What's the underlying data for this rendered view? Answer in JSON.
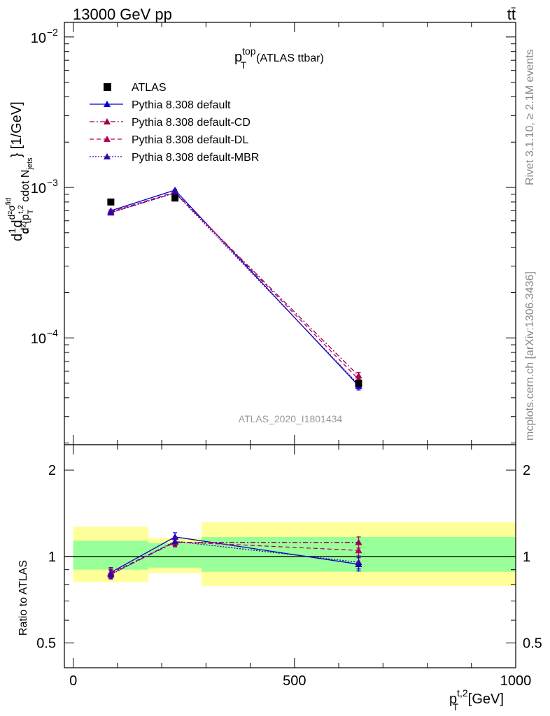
{
  "header": {
    "left": "13000 GeV pp",
    "right": "tt̄"
  },
  "side_labels": {
    "rivet": "Rivet 3.1.10, ≥ 2.1M events",
    "mcplots": "mcplots.cern.ch [arXiv:1306.3436]"
  },
  "watermark": "ATLAS_2020_I1801434",
  "colors": {
    "data": "#000000",
    "default": "#0000cc",
    "cd": "#99004d",
    "dl": "#b3005a",
    "mbr": "#3300aa",
    "band_inner": "#99ff99",
    "band_outer": "#ffff99"
  },
  "chart_data": [
    {
      "type": "line",
      "title_main": "p",
      "title_sup": "top",
      "title_sub": "T",
      "title_rest": "(ATLAS ttbar)",
      "ylabel": "d1dσdd²σ^{fid}d²{p_T^{t,2} cdot N_jets} [1/GeV]",
      "ylabel_parts": {
        "a": "d",
        "b": "1",
        "c": "d",
        "d": "σ",
        "e": "d",
        "f": "d²σ",
        "g": "fid",
        "h": "d²{p",
        "i": "T",
        "j": "t,2",
        "k": " cdot N",
        "l": "jets",
        "m": "} [1/GeV]"
      },
      "yscale": "log",
      "ylim": [
        1.95e-05,
        0.0125
      ],
      "xlim": [
        -20,
        1000
      ],
      "yticks": [
        {
          "value": 0.01,
          "base": "10",
          "exp": "−2"
        },
        {
          "value": 0.001,
          "base": "10",
          "exp": "−3"
        },
        {
          "value": 0.0001,
          "base": "10",
          "exp": "−4"
        }
      ],
      "legend_position": "top-left",
      "series": [
        {
          "name": "ATLAS",
          "key": "data",
          "x": [
            85,
            230,
            645
          ],
          "y": [
            0.0008,
            0.00085,
            5e-05
          ],
          "yerr": [
            1e-05,
            1e-05,
            1.5e-06
          ],
          "marker": "square",
          "line": "none"
        },
        {
          "name": "Pythia 8.308 default",
          "key": "default",
          "x": [
            85,
            230,
            645
          ],
          "y": [
            0.0007,
            0.00096,
            4.8e-05
          ],
          "yerr": [
            1e-05,
            1e-05,
            3e-06
          ],
          "marker": "triangle",
          "line": "solid"
        },
        {
          "name": "Pythia 8.308 default-CD",
          "key": "cd",
          "x": [
            85,
            230,
            645
          ],
          "y": [
            0.00068,
            0.00092,
            5.6e-05
          ],
          "yerr": [
            1e-05,
            1e-05,
            3e-06
          ],
          "marker": "triangle",
          "line": "dashdot"
        },
        {
          "name": "Pythia 8.308 default-DL",
          "key": "dl",
          "x": [
            85,
            230,
            645
          ],
          "y": [
            0.00069,
            0.00093,
            5.3e-05
          ],
          "yerr": [
            1e-05,
            1e-05,
            3e-06
          ],
          "marker": "triangle",
          "line": "dashed"
        },
        {
          "name": "Pythia 8.308 default-MBR",
          "key": "mbr",
          "x": [
            85,
            230,
            645
          ],
          "y": [
            0.00068,
            0.00092,
            4.9e-05
          ],
          "yerr": [
            1e-05,
            1e-05,
            3e-06
          ],
          "marker": "triangle",
          "line": "dotted"
        }
      ]
    },
    {
      "type": "line",
      "ylabel": "Ratio to ATLAS",
      "xlabel_main": "p",
      "xlabel_sup": "t,2",
      "xlabel_sub": "T",
      "xlabel_rest": " [GeV]",
      "yscale": "log",
      "ylim": [
        0.41,
        2.45
      ],
      "xlim": [
        -20,
        1000
      ],
      "yticks": [
        {
          "value": 0.5,
          "label": "0.5"
        },
        {
          "value": 1,
          "label": "1"
        },
        {
          "value": 2,
          "label": "2"
        }
      ],
      "xticks": [
        {
          "value": 0,
          "label": "0"
        },
        {
          "value": 500,
          "label": "500"
        },
        {
          "value": 1000,
          "label": "1000"
        }
      ],
      "bands": [
        {
          "x": [
            0,
            170
          ],
          "inner": [
            0.9,
            1.135
          ],
          "outer": [
            0.815,
            1.27
          ]
        },
        {
          "x": [
            170,
            290
          ],
          "inner": [
            0.915,
            1.115
          ],
          "outer": [
            0.875,
            1.16
          ]
        },
        {
          "x": [
            290,
            1000
          ],
          "inner": [
            0.885,
            1.17
          ],
          "outer": [
            0.79,
            1.315
          ]
        }
      ],
      "series": [
        {
          "name": "Pythia 8.308 default",
          "key": "default",
          "x": [
            85,
            230,
            645
          ],
          "y": [
            0.88,
            1.17,
            0.94
          ],
          "yerr": [
            0.035,
            0.04,
            0.05
          ],
          "line": "solid"
        },
        {
          "name": "Pythia 8.308 default-CD",
          "key": "cd",
          "x": [
            85,
            230,
            645
          ],
          "y": [
            0.87,
            1.12,
            1.12
          ],
          "yerr": [
            0.03,
            0.04,
            0.05
          ],
          "line": "dashdot"
        },
        {
          "name": "Pythia 8.308 default-DL",
          "key": "dl",
          "x": [
            85,
            230,
            645
          ],
          "y": [
            0.875,
            1.125,
            1.05
          ],
          "yerr": [
            0.03,
            0.04,
            0.05
          ],
          "line": "dashed"
        },
        {
          "name": "Pythia 8.308 default-MBR",
          "key": "mbr",
          "x": [
            85,
            230,
            645
          ],
          "y": [
            0.865,
            1.13,
            0.955
          ],
          "yerr": [
            0.03,
            0.04,
            0.05
          ],
          "line": "dotted"
        }
      ]
    }
  ]
}
